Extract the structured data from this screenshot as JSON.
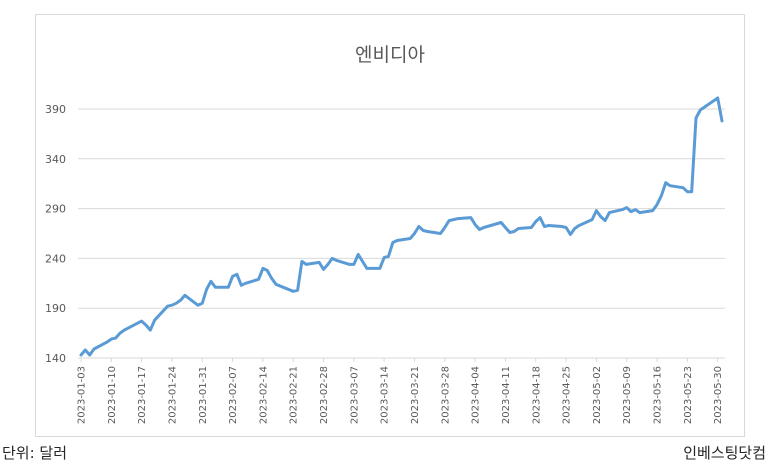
{
  "footer": {
    "unit_label": "단위: 달러",
    "source": "인베스팅닷컴"
  },
  "chart_data": {
    "type": "line",
    "title": "엔비디아",
    "xlabel": "",
    "ylabel": "",
    "ylim": [
      140,
      410
    ],
    "y_ticks": [
      140,
      190,
      240,
      290,
      340,
      390
    ],
    "x_tick_labels": [
      "2023-01-03",
      "2023-01-10",
      "2023-01-17",
      "2023-01-24",
      "2023-01-31",
      "2023-02-07",
      "2023-02-14",
      "2023-02-21",
      "2023-02-28",
      "2023-03-07",
      "2023-03-14",
      "2023-03-21",
      "2023-03-28",
      "2023-04-04",
      "2023-04-11",
      "2023-04-18",
      "2023-04-25",
      "2023-05-02",
      "2023-05-09",
      "2023-05-16",
      "2023-05-23",
      "2023-05-30"
    ],
    "grid": "horizontal",
    "legend": "none",
    "colors": {
      "line": "#5b9bd5",
      "grid": "#d9d9d9",
      "tick_text": "#595959"
    },
    "series": [
      {
        "x": [
          "2023-01-03",
          "2023-01-04",
          "2023-01-05",
          "2023-01-06",
          "2023-01-09",
          "2023-01-10",
          "2023-01-11",
          "2023-01-12",
          "2023-01-13",
          "2023-01-17",
          "2023-01-18",
          "2023-01-19",
          "2023-01-20",
          "2023-01-23",
          "2023-01-24",
          "2023-01-25",
          "2023-01-26",
          "2023-01-27",
          "2023-01-30",
          "2023-01-31",
          "2023-02-01",
          "2023-02-02",
          "2023-02-03",
          "2023-02-06",
          "2023-02-07",
          "2023-02-08",
          "2023-02-09",
          "2023-02-10",
          "2023-02-13",
          "2023-02-14",
          "2023-02-15",
          "2023-02-16",
          "2023-02-17",
          "2023-02-21",
          "2023-02-22",
          "2023-02-23",
          "2023-02-24",
          "2023-02-27",
          "2023-02-28",
          "2023-03-01",
          "2023-03-02",
          "2023-03-03",
          "2023-03-06",
          "2023-03-07",
          "2023-03-08",
          "2023-03-09",
          "2023-03-10",
          "2023-03-13",
          "2023-03-14",
          "2023-03-15",
          "2023-03-16",
          "2023-03-17",
          "2023-03-20",
          "2023-03-21",
          "2023-03-22",
          "2023-03-23",
          "2023-03-24",
          "2023-03-27",
          "2023-03-28",
          "2023-03-29",
          "2023-03-30",
          "2023-03-31",
          "2023-04-03",
          "2023-04-04",
          "2023-04-05",
          "2023-04-06",
          "2023-04-10",
          "2023-04-11",
          "2023-04-12",
          "2023-04-13",
          "2023-04-14",
          "2023-04-17",
          "2023-04-18",
          "2023-04-19",
          "2023-04-20",
          "2023-04-21",
          "2023-04-24",
          "2023-04-25",
          "2023-04-26",
          "2023-04-27",
          "2023-04-28",
          "2023-05-01",
          "2023-05-02",
          "2023-05-03",
          "2023-05-04",
          "2023-05-05",
          "2023-05-08",
          "2023-05-09",
          "2023-05-10",
          "2023-05-11",
          "2023-05-12",
          "2023-05-15",
          "2023-05-16",
          "2023-05-17",
          "2023-05-18",
          "2023-05-19",
          "2023-05-22",
          "2023-05-23",
          "2023-05-24",
          "2023-05-25",
          "2023-05-26",
          "2023-05-30",
          "2023-05-31"
        ],
        "values": [
          143,
          148,
          143,
          149,
          156,
          159,
          160,
          165,
          168,
          177,
          173,
          168,
          178,
          192,
          193,
          195,
          198,
          203,
          193,
          195,
          209,
          217,
          211,
          211,
          222,
          224,
          213,
          215,
          219,
          230,
          228,
          220,
          214,
          207,
          208,
          237,
          234,
          236,
          229,
          234,
          240,
          238,
          234,
          234,
          244,
          237,
          230,
          230,
          241,
          242,
          256,
          258,
          260,
          265,
          272,
          268,
          267,
          265,
          271,
          278,
          279,
          280,
          281,
          274,
          269,
          271,
          276,
          271,
          266,
          267,
          270,
          271,
          277,
          281,
          272,
          273,
          272,
          271,
          264,
          270,
          273,
          279,
          288,
          282,
          278,
          286,
          289,
          291,
          287,
          289,
          286,
          288,
          294,
          303,
          316,
          313,
          311,
          307,
          307,
          381,
          389,
          401,
          378
        ]
      }
    ]
  }
}
